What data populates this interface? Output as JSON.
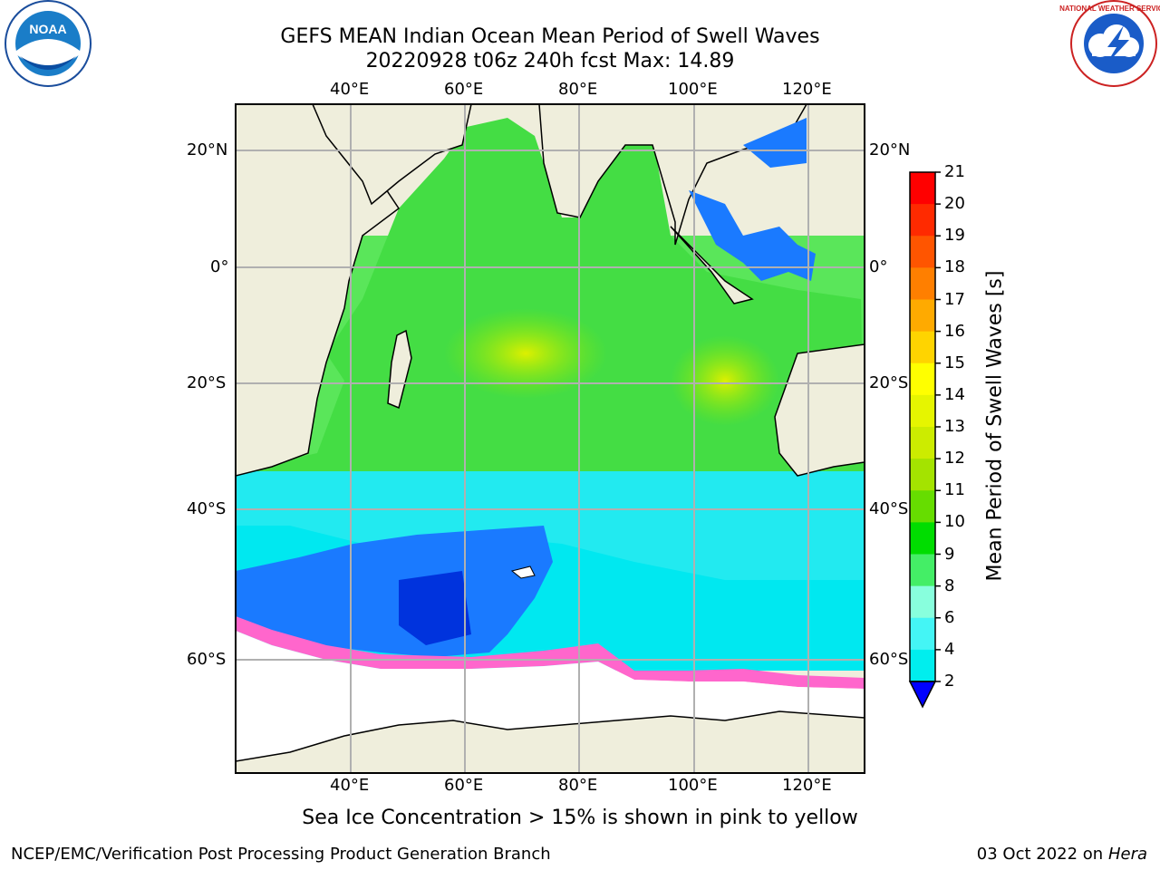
{
  "title": {
    "line1": "GEFS MEAN Indian Ocean Mean Period of Swell Waves",
    "line2": "20220928 t06z 240h fcst   Max: 14.89"
  },
  "map": {
    "lon_ticks": [
      "40°E",
      "60°E",
      "80°E",
      "100°E",
      "120°E"
    ],
    "lat_ticks": [
      "20°N",
      "0°",
      "20°S",
      "40°S",
      "60°S"
    ]
  },
  "colorbar": {
    "label": "Mean Period of Swell Waves [s]",
    "ticks": [
      "21",
      "20",
      "19",
      "18",
      "17",
      "16",
      "15",
      "14",
      "13",
      "12",
      "11",
      "10",
      "9",
      "8",
      "6",
      "4",
      "2"
    ],
    "colors": [
      "#ff0000",
      "#ff2a00",
      "#ff5500",
      "#ff7f00",
      "#ffaa00",
      "#ffd400",
      "#ffff00",
      "#e6f500",
      "#ccec00",
      "#a4e300",
      "#66dd00",
      "#00dd00",
      "#44ee66",
      "#88ffdd",
      "#44f5f5",
      "#00eeee",
      "#00aaff",
      "#0055ff",
      "#0000ff"
    ]
  },
  "ice_note": "Sea Ice Concentration > 15% is shown in pink to yellow",
  "footer": {
    "left": "NCEP/EMC/Verification Post Processing Product Generation Branch",
    "right_date": "03 Oct 2022 on",
    "right_host": "Hera"
  },
  "logos": {
    "noaa_text": "NOAA",
    "nws_text": "NATIONAL WEATHER SERVICE"
  }
}
